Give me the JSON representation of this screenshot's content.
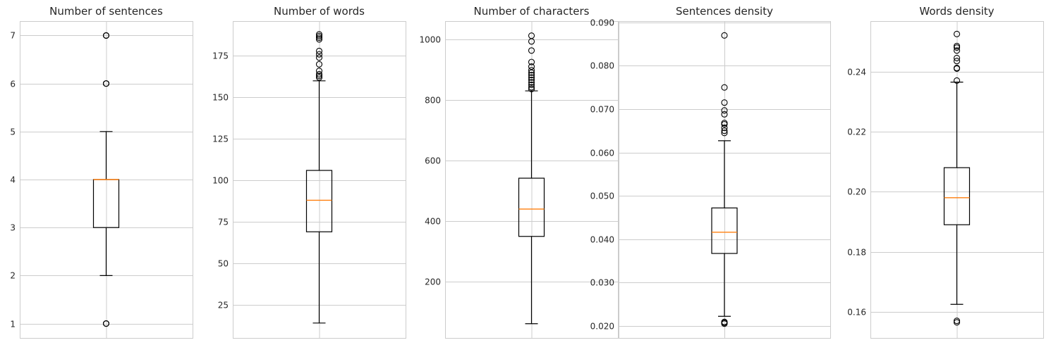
{
  "chart_data": [
    {
      "type": "box",
      "title": "Number of sentences",
      "ylim": [
        0.7,
        7.3
      ],
      "yticks": [
        1,
        2,
        3,
        4,
        5,
        6,
        7
      ],
      "grid": true,
      "box": {
        "whisker_low": 2,
        "q1": 3,
        "median": 4,
        "q3": 4,
        "whisker_high": 5,
        "outliers": [
          1,
          1,
          1,
          6,
          6,
          6,
          7,
          7,
          7
        ]
      }
    },
    {
      "type": "box",
      "title": "Number of words",
      "ylim": [
        5,
        196
      ],
      "yticks": [
        25,
        50,
        75,
        100,
        125,
        150,
        175
      ],
      "grid": true,
      "box": {
        "whisker_low": 14,
        "q1": 69,
        "median": 88,
        "q3": 106,
        "whisker_high": 160,
        "outliers": [
          162,
          163,
          164,
          166,
          170,
          174,
          176,
          178,
          185,
          186,
          187,
          188
        ]
      }
    },
    {
      "type": "box",
      "title": "Number of characters",
      "ylim": [
        15,
        1060
      ],
      "yticks": [
        200,
        400,
        600,
        800,
        1000
      ],
      "grid": true,
      "box": {
        "whisker_low": 62,
        "q1": 350,
        "median": 440,
        "q3": 542,
        "whisker_high": 830,
        "outliers": [
          836,
          842,
          850,
          858,
          866,
          874,
          882,
          890,
          898,
          910,
          925,
          963,
          993,
          1012
        ]
      }
    },
    {
      "type": "box",
      "title": "Sentences density",
      "ylim": [
        0.0172,
        0.0903
      ],
      "yticks": [
        0.02,
        0.03,
        0.04,
        0.05,
        0.06,
        0.07,
        0.08,
        0.09
      ],
      "grid": true,
      "box": {
        "whisker_low": 0.0222,
        "q1": 0.0367,
        "median": 0.0416,
        "q3": 0.0472,
        "whisker_high": 0.0627,
        "outliers": [
          0.0205,
          0.0207,
          0.0209,
          0.0645,
          0.065,
          0.0657,
          0.0665,
          0.0668,
          0.0688,
          0.0697,
          0.0715,
          0.075,
          0.087
        ]
      }
    },
    {
      "type": "box",
      "title": "Words density",
      "ylim": [
        0.1513,
        0.2568
      ],
      "yticks": [
        0.16,
        0.18,
        0.2,
        0.22,
        0.24
      ],
      "grid": true,
      "box": {
        "whisker_low": 0.1625,
        "q1": 0.189,
        "median": 0.198,
        "q3": 0.208,
        "whisker_high": 0.2365,
        "outliers": [
          0.1565,
          0.157,
          0.237,
          0.241,
          0.2412,
          0.2435,
          0.2445,
          0.247,
          0.248,
          0.2485,
          0.2525
        ]
      }
    }
  ],
  "colors": {
    "box": "#000000",
    "median": "#ff7f0e",
    "grid": "#cccccc",
    "frame": "#cccccc",
    "text": "#262626"
  }
}
